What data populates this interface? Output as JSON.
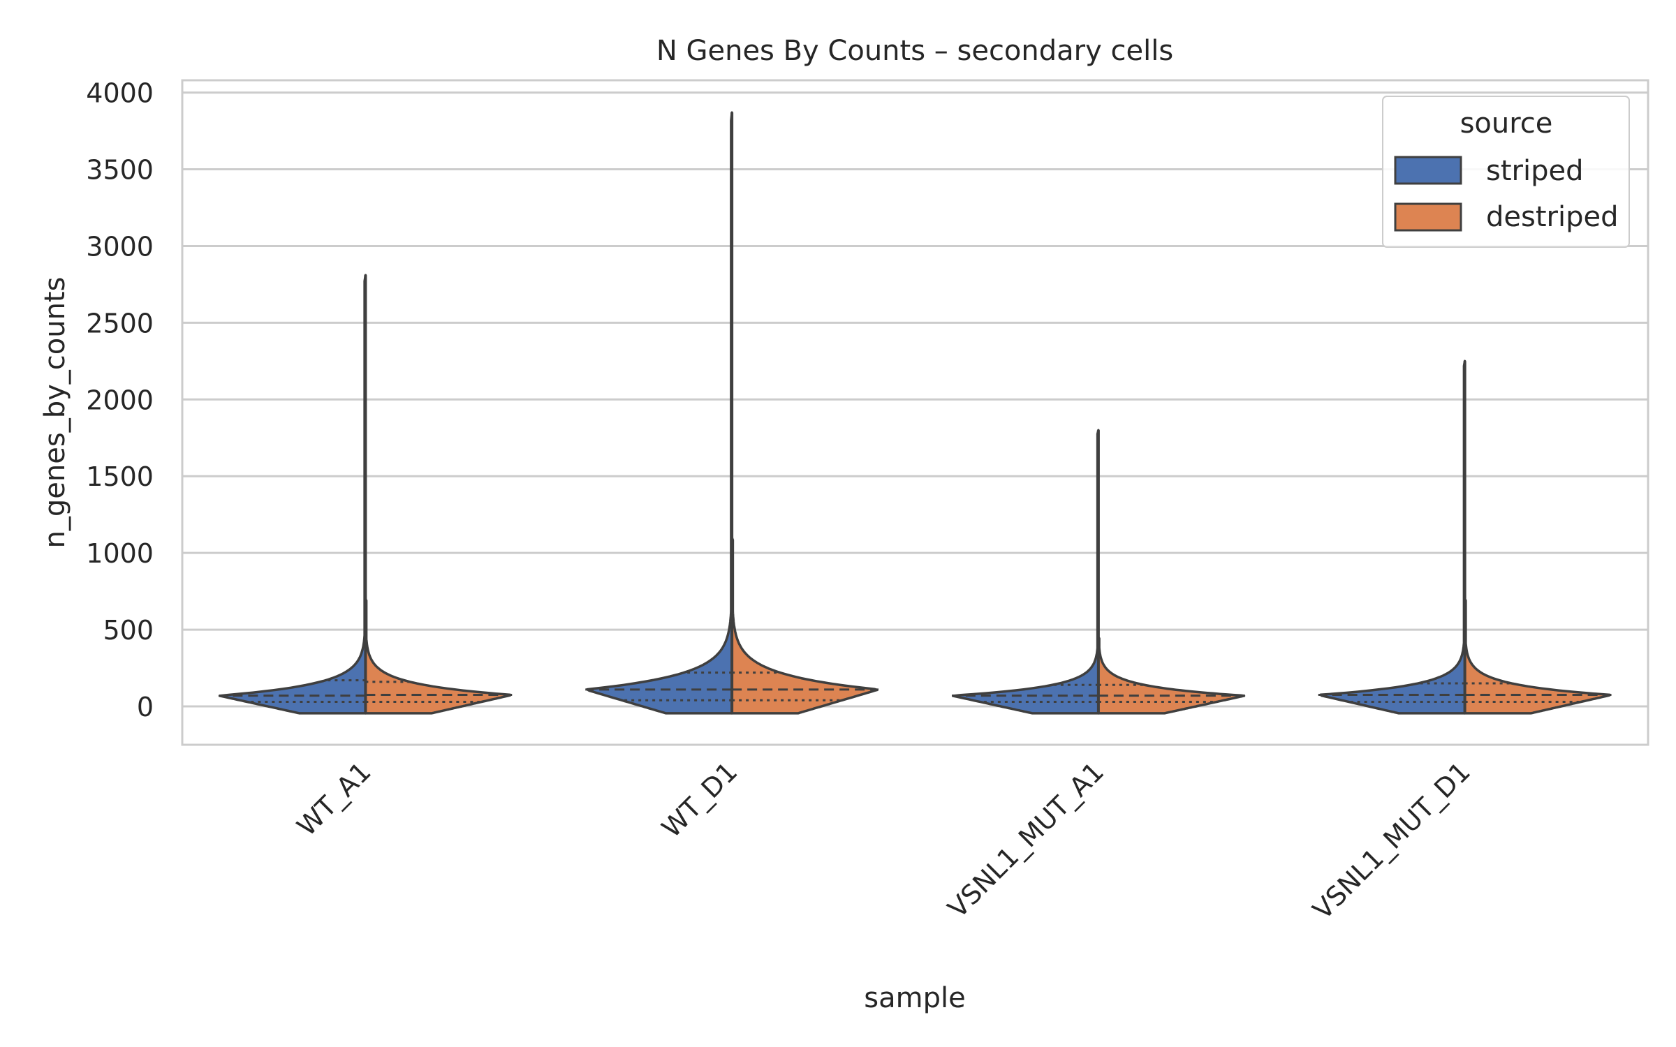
{
  "chart_data": {
    "type": "violin",
    "title": "N Genes By Counts – secondary cells",
    "xlabel": "sample",
    "ylabel": "n_genes_by_counts",
    "ylim": [
      -250,
      4080
    ],
    "yticks": [
      0,
      500,
      1000,
      1500,
      2000,
      2500,
      3000,
      3500,
      4000
    ],
    "grid": true,
    "categories": [
      "WT_A1",
      "WT_D1",
      "VSNL1_MUT_A1",
      "VSNL1_MUT_D1"
    ],
    "legend": {
      "title": "source",
      "position": "top-right",
      "entries": [
        "striped",
        "destriped"
      ]
    },
    "series": [
      {
        "name": "striped",
        "color": "#4c72b0",
        "max": [
          2810,
          3870,
          1800,
          2250
        ],
        "q1": [
          30,
          40,
          30,
          30
        ],
        "median": [
          70,
          110,
          70,
          75
        ],
        "q3": [
          170,
          220,
          140,
          150
        ]
      },
      {
        "name": "destriped",
        "color": "#dd8452",
        "max": [
          700,
          1100,
          450,
          700
        ],
        "q1": [
          30,
          40,
          30,
          30
        ],
        "median": [
          75,
          110,
          70,
          75
        ],
        "q3": [
          160,
          220,
          140,
          150
        ]
      }
    ]
  }
}
